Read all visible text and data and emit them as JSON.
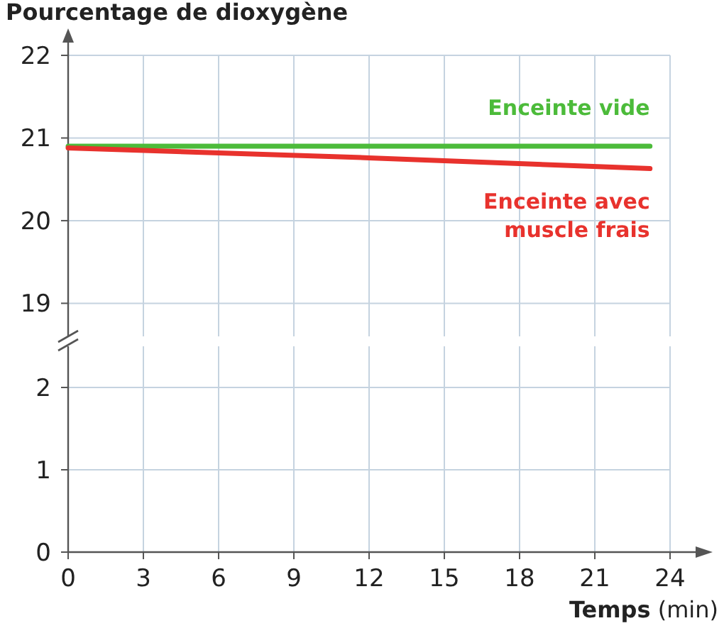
{
  "chart_data": [
    {
      "type": "line",
      "ylabel": "Pourcentage de dioxygène",
      "xlim": [
        0,
        24
      ],
      "xticks": [
        0,
        3,
        6,
        9,
        12,
        15,
        18,
        21,
        24
      ],
      "ylim": [
        18.6,
        22
      ],
      "yticks": [
        19,
        20,
        21,
        22
      ],
      "grid": true,
      "tick_labels": "y",
      "series": [
        {
          "name": "Enceinte vide",
          "color": "#4cbb3a",
          "x": [
            0,
            23.2
          ],
          "values": [
            20.9,
            20.9
          ]
        },
        {
          "name": "Enceinte avec muscle frais",
          "color": "#e8322d",
          "x": [
            0,
            12,
            23.2
          ],
          "values": [
            20.88,
            20.76,
            20.63
          ]
        }
      ]
    },
    {
      "type": "line",
      "xlabel": "Temps (min)",
      "xlim": [
        0,
        24
      ],
      "xticks": [
        0,
        3,
        6,
        9,
        12,
        15,
        18,
        21,
        24
      ],
      "ylim": [
        0,
        2.5
      ],
      "yticks": [
        0,
        1,
        2
      ],
      "grid": true
    }
  ]
}
